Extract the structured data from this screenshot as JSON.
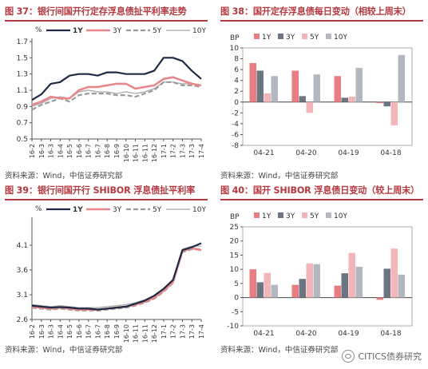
{
  "panels": [
    {
      "title": "图 37：银行间国开行定存浮息债扯平利率走势",
      "source": "资料来源：Wind，中信证券研究部"
    },
    {
      "title": "图 38：国开定存浮息债每日变动（相较上周末）",
      "source": "资料来源：Wind，中信证券研究部"
    },
    {
      "title": "图 39：银行间国开行 SHIBOR 浮息债扯平利率",
      "source": "资料来源：Wind，中信证券研究部"
    },
    {
      "title": "图 40：国开 SHIBOR 浮息债日变动（较上周末）",
      "source": "资料来源：Wind，中信证券研究部"
    }
  ],
  "watermark": "CITICS债券研究",
  "colors": {
    "1Y": "#1f2a44",
    "3Y": "#e8868a",
    "5Y": "#9a9a9a",
    "10Y": "#a7a7a7",
    "bar1Y": "#e87c80",
    "bar3Y": "#6d7583",
    "bar5Y": "#f2b5b8",
    "bar10Y": "#b3b8c0"
  },
  "chart_data": [
    {
      "type": "line",
      "ylabel": "%",
      "ylim": [
        0.5,
        1.7
      ],
      "yticks": [
        0.5,
        0.7,
        0.9,
        1.1,
        1.3,
        1.5,
        1.7
      ],
      "x": [
        "16-2",
        "16-3",
        "16-3",
        "16-4",
        "16-5",
        "16-6",
        "16-7",
        "16-7",
        "16-8",
        "16-9",
        "16-10",
        "16-11",
        "16-11",
        "16-12",
        "17-1",
        "17-2",
        "17-3",
        "17-3",
        "17-4"
      ],
      "series": [
        {
          "name": "1Y",
          "values": [
            0.98,
            1.05,
            1.18,
            1.2,
            1.28,
            1.3,
            1.3,
            1.28,
            1.32,
            1.32,
            1.3,
            1.3,
            1.3,
            1.34,
            1.5,
            1.5,
            1.46,
            1.34,
            1.24
          ]
        },
        {
          "name": "3Y",
          "values": [
            0.92,
            0.96,
            1.02,
            1.0,
            1.0,
            1.1,
            1.14,
            1.14,
            1.16,
            1.18,
            1.18,
            1.12,
            1.14,
            1.16,
            1.24,
            1.26,
            1.22,
            1.18,
            1.16
          ]
        },
        {
          "name": "5Y",
          "values": [
            0.86,
            0.92,
            0.96,
            1.0,
            0.96,
            1.04,
            1.06,
            1.06,
            1.06,
            1.04,
            1.04,
            1.02,
            1.06,
            1.1,
            1.2,
            1.2,
            1.16,
            1.16,
            1.14
          ]
        },
        {
          "name": "10Y",
          "values": [
            0.9,
            0.94,
            1.0,
            1.02,
            1.0,
            1.08,
            1.1,
            1.08,
            1.08,
            1.06,
            1.08,
            1.06,
            1.08,
            1.12,
            1.2,
            1.2,
            1.18,
            1.18,
            1.16
          ]
        }
      ]
    },
    {
      "type": "bar",
      "ylabel": "BP",
      "ylim": [
        -8,
        10
      ],
      "yticks": [
        -8,
        -6,
        -4,
        -2,
        0,
        2,
        4,
        6,
        8,
        10
      ],
      "categories": [
        "04-21",
        "04-20",
        "04-19",
        "04-18"
      ],
      "series": [
        {
          "name": "1Y",
          "values": [
            7.2,
            5.8,
            4.8,
            -0.2
          ]
        },
        {
          "name": "3Y",
          "values": [
            5.8,
            1.1,
            0.8,
            -0.8
          ]
        },
        {
          "name": "5Y",
          "values": [
            1.6,
            -2.0,
            1.0,
            -4.3
          ]
        },
        {
          "name": "10Y",
          "values": [
            4.8,
            5.1,
            6.3,
            8.7
          ]
        }
      ]
    },
    {
      "type": "line",
      "ylabel": "%",
      "ylim": [
        2.6,
        4.6
      ],
      "yticks": [
        2.6,
        3.1,
        3.6,
        4.1
      ],
      "x": [
        "16-2",
        "16-3",
        "16-3",
        "16-4",
        "16-5",
        "16-6",
        "16-7",
        "16-7",
        "16-8",
        "16-9",
        "16-10",
        "16-11",
        "16-11",
        "16-12",
        "17-1",
        "17-2",
        "17-3",
        "17-3",
        "17-4"
      ],
      "series": [
        {
          "name": "1Y",
          "values": [
            2.88,
            2.86,
            2.84,
            2.85,
            2.84,
            2.82,
            2.82,
            2.8,
            2.82,
            2.84,
            2.86,
            2.92,
            2.98,
            3.08,
            3.22,
            3.4,
            4.0,
            4.06,
            4.14
          ]
        },
        {
          "name": "3Y",
          "values": [
            2.86,
            2.84,
            2.82,
            2.84,
            2.82,
            2.8,
            2.8,
            2.8,
            2.82,
            2.84,
            2.86,
            2.9,
            2.96,
            3.04,
            3.18,
            3.36,
            3.98,
            4.04,
            4.0
          ]
        },
        {
          "name": "5Y",
          "values": [
            2.84,
            2.82,
            2.8,
            2.82,
            2.8,
            2.78,
            2.78,
            2.78,
            2.8,
            2.82,
            2.84,
            2.88,
            2.94,
            3.02,
            3.16,
            3.34,
            3.96,
            4.02,
            4.02
          ]
        },
        {
          "name": "10Y",
          "values": [
            2.9,
            2.88,
            2.86,
            2.88,
            2.86,
            2.84,
            2.84,
            2.84,
            2.86,
            2.88,
            2.9,
            2.94,
            3.0,
            3.08,
            3.22,
            3.4,
            4.02,
            4.08,
            4.08
          ]
        }
      ]
    },
    {
      "type": "bar",
      "ylabel": "BP",
      "ylim": [
        -10,
        25
      ],
      "yticks": [
        -10,
        -5,
        0,
        5,
        10,
        15,
        20,
        25
      ],
      "categories": [
        "04-21",
        "04-20",
        "04-19",
        "04-18"
      ],
      "series": [
        {
          "name": "1Y",
          "values": [
            10.0,
            4.5,
            4.2,
            -0.8
          ]
        },
        {
          "name": "3Y",
          "values": [
            5.4,
            6.6,
            8.6,
            10.2
          ]
        },
        {
          "name": "5Y",
          "values": [
            8.7,
            12.1,
            15.8,
            17.3
          ]
        },
        {
          "name": "10Y",
          "values": [
            4.5,
            11.8,
            10.9,
            8.1
          ]
        }
      ]
    }
  ]
}
